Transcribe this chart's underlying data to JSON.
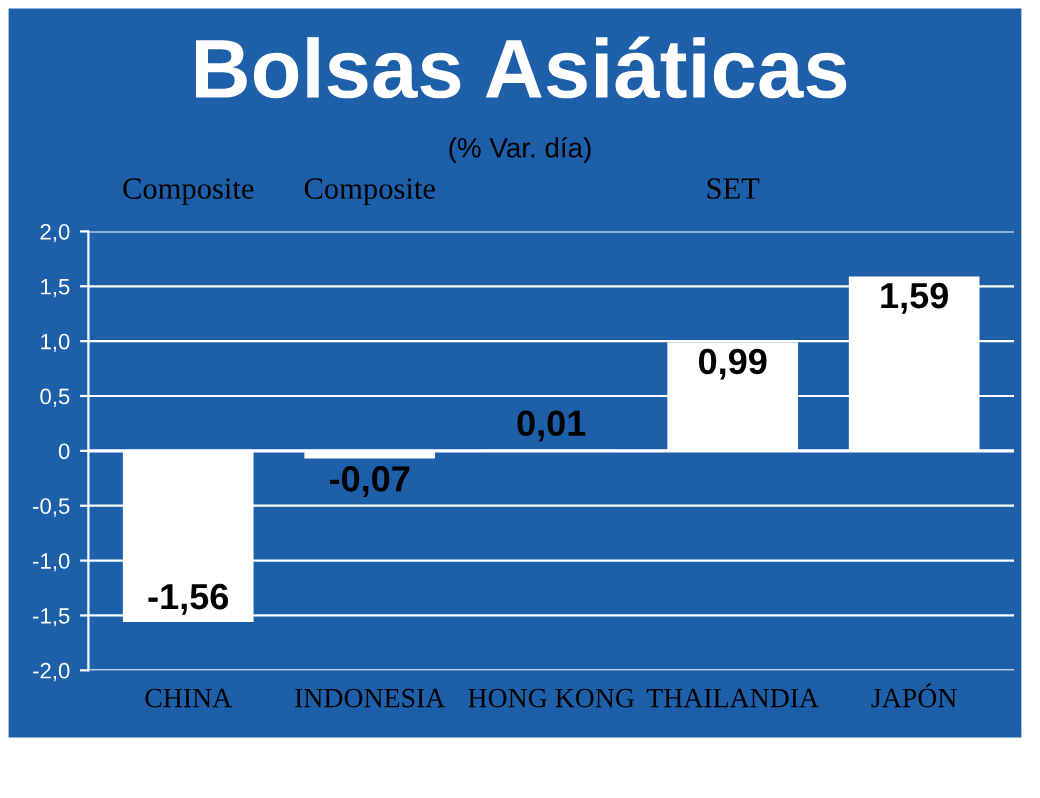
{
  "chart_data": {
    "type": "bar",
    "title": "Bolsas Asiáticas",
    "subtitle": "(% Var. día)",
    "categories": [
      "CHINA",
      "INDONESIA",
      "HONG KONG",
      "THAILANDIA",
      "JAPÓN"
    ],
    "values": [
      -1.56,
      -0.07,
      0.01,
      0.99,
      1.59
    ],
    "value_labels": [
      "-1,56",
      "-0,07",
      "0,01",
      "0,99",
      "1,59"
    ],
    "color": "#ffffff",
    "ylim": [
      -2.0,
      2.0
    ],
    "yticks": [
      {
        "value": 2.0,
        "label": "2,0"
      },
      {
        "value": 1.5,
        "label": "1,5"
      },
      {
        "value": 1.0,
        "label": "1,0"
      },
      {
        "value": 0.5,
        "label": "0,5"
      },
      {
        "value": 0,
        "label": "0"
      },
      {
        "value": -0.5,
        "label": "-0,5"
      },
      {
        "value": -1.0,
        "label": "-1,0"
      },
      {
        "value": -1.5,
        "label": "-1,5"
      },
      {
        "value": -2.0,
        "label": "-2,0"
      }
    ],
    "grid": "y",
    "annotations": [
      "Composite",
      "Composite",
      "SET"
    ]
  }
}
